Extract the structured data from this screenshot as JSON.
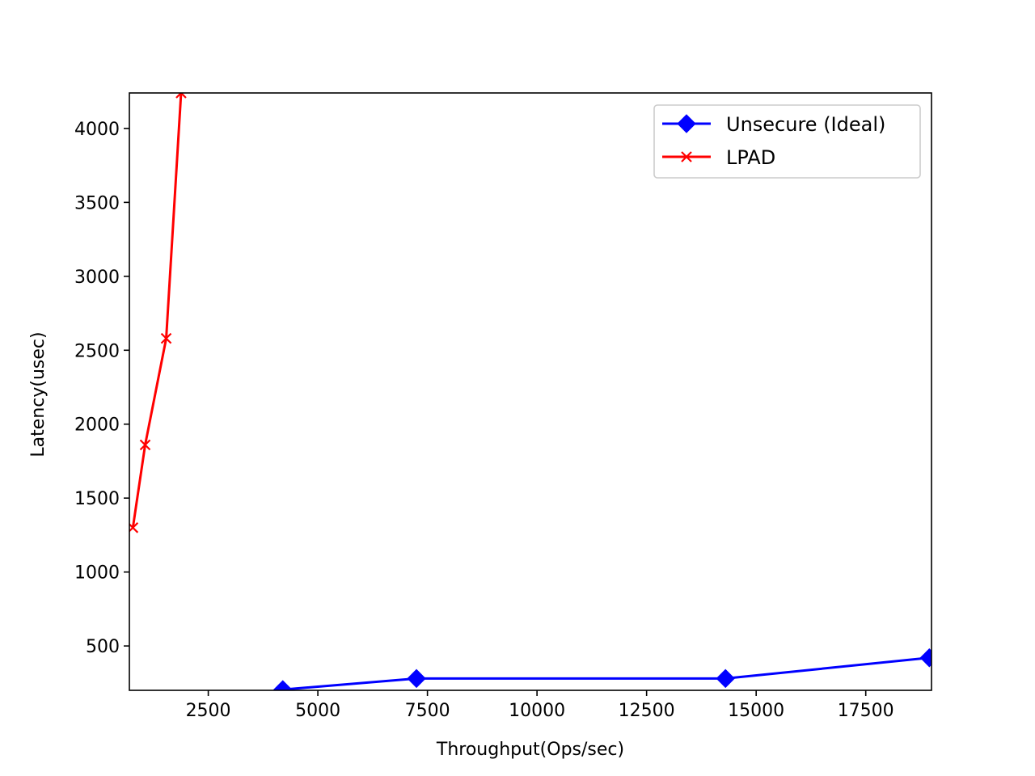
{
  "chart_data": {
    "type": "line",
    "title": "",
    "xlabel": "Throughput(Ops/sec)",
    "ylabel": "Latency(usec)",
    "xlim": [
      700,
      19000
    ],
    "ylim": [
      200,
      4240
    ],
    "xticks": [
      2500,
      5000,
      7500,
      10000,
      12500,
      15000,
      17500
    ],
    "yticks": [
      500,
      1000,
      1500,
      2000,
      2500,
      3000,
      3500,
      4000
    ],
    "grid": false,
    "legend_position": "upper right",
    "series": [
      {
        "name": "Unsecure (Ideal)",
        "color": "#0000ff",
        "marker": "diamond",
        "x": [
          4200,
          7250,
          14300,
          18950
        ],
        "y": [
          205,
          280,
          280,
          420
        ]
      },
      {
        "name": "LPAD",
        "color": "#ff0000",
        "marker": "x",
        "x": [
          780,
          1060,
          1540,
          1880
        ],
        "y": [
          1300,
          1860,
          2580,
          4240
        ]
      }
    ]
  }
}
